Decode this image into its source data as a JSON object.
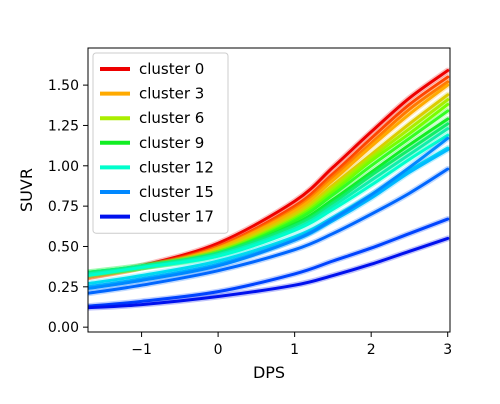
{
  "chart_data": {
    "type": "line",
    "title": "",
    "xlabel": "DPS",
    "ylabel": "SUVR",
    "xlim": [
      -1.7,
      3.03
    ],
    "ylim": [
      -0.03,
      1.73
    ],
    "xticks": [
      -1,
      0,
      1,
      2,
      3
    ],
    "yticks": [
      0.0,
      0.25,
      0.5,
      0.75,
      1.0,
      1.25,
      1.5
    ],
    "x": [
      -1.7,
      -1.0,
      0.0,
      1.0,
      1.5,
      2.0,
      2.5,
      3.0
    ],
    "grid": false,
    "legend_position": "top-left",
    "series": [
      {
        "name": "cluster 0",
        "color": "#ee0000",
        "values": [
          0.31,
          0.38,
          0.52,
          0.78,
          0.99,
          1.21,
          1.42,
          1.59
        ]
      },
      {
        "name": "",
        "color": "#ff4400",
        "values": [
          0.31,
          0.37,
          0.5,
          0.75,
          0.95,
          1.17,
          1.38,
          1.55
        ]
      },
      {
        "name": "",
        "color": "#ff7700",
        "values": [
          0.31,
          0.37,
          0.49,
          0.73,
          0.93,
          1.14,
          1.35,
          1.52
        ]
      },
      {
        "name": "cluster 3",
        "color": "#ffaa00",
        "values": [
          0.32,
          0.37,
          0.49,
          0.72,
          0.91,
          1.12,
          1.32,
          1.5
        ]
      },
      {
        "name": "",
        "color": "#ddcc00",
        "values": [
          0.32,
          0.37,
          0.48,
          0.7,
          0.88,
          1.07,
          1.26,
          1.44
        ]
      },
      {
        "name": "cluster 6",
        "color": "#aaee00",
        "values": [
          0.33,
          0.37,
          0.47,
          0.68,
          0.86,
          1.05,
          1.23,
          1.41
        ]
      },
      {
        "name": "",
        "color": "#77ff00",
        "values": [
          0.33,
          0.37,
          0.46,
          0.67,
          0.84,
          1.03,
          1.2,
          1.38
        ]
      },
      {
        "name": "",
        "color": "#33ff22",
        "values": [
          0.34,
          0.38,
          0.46,
          0.66,
          0.82,
          1.0,
          1.17,
          1.34
        ]
      },
      {
        "name": "cluster 9",
        "color": "#11ee22",
        "values": [
          0.33,
          0.37,
          0.45,
          0.64,
          0.79,
          0.96,
          1.13,
          1.29
        ]
      },
      {
        "name": "",
        "color": "#11ee66",
        "values": [
          0.34,
          0.38,
          0.46,
          0.63,
          0.77,
          0.94,
          1.1,
          1.26
        ]
      },
      {
        "name": "",
        "color": "#11eeaa",
        "values": [
          0.33,
          0.37,
          0.45,
          0.61,
          0.75,
          0.91,
          1.07,
          1.23
        ]
      },
      {
        "name": "cluster 12",
        "color": "#00ffcc",
        "values": [
          0.32,
          0.37,
          0.44,
          0.6,
          0.73,
          0.88,
          1.04,
          1.19
        ]
      },
      {
        "name": "",
        "color": "#00ddee",
        "values": [
          0.27,
          0.32,
          0.41,
          0.56,
          0.68,
          0.82,
          0.97,
          1.11
        ]
      },
      {
        "name": "",
        "color": "#00bbff",
        "values": [
          0.25,
          0.3,
          0.39,
          0.54,
          0.66,
          0.8,
          0.96,
          1.1
        ]
      },
      {
        "name": "cluster 15",
        "color": "#0088ff",
        "values": [
          0.24,
          0.29,
          0.38,
          0.54,
          0.67,
          0.82,
          0.99,
          1.17
        ]
      },
      {
        "name": "",
        "color": "#0066ff",
        "values": [
          0.21,
          0.26,
          0.35,
          0.48,
          0.58,
          0.7,
          0.83,
          0.98
        ]
      },
      {
        "name": "",
        "color": "#0044ff",
        "values": [
          0.13,
          0.16,
          0.22,
          0.33,
          0.41,
          0.49,
          0.58,
          0.67
        ]
      },
      {
        "name": "cluster 17",
        "color": "#0011ee",
        "values": [
          0.12,
          0.14,
          0.19,
          0.26,
          0.32,
          0.39,
          0.47,
          0.55
        ]
      }
    ]
  }
}
